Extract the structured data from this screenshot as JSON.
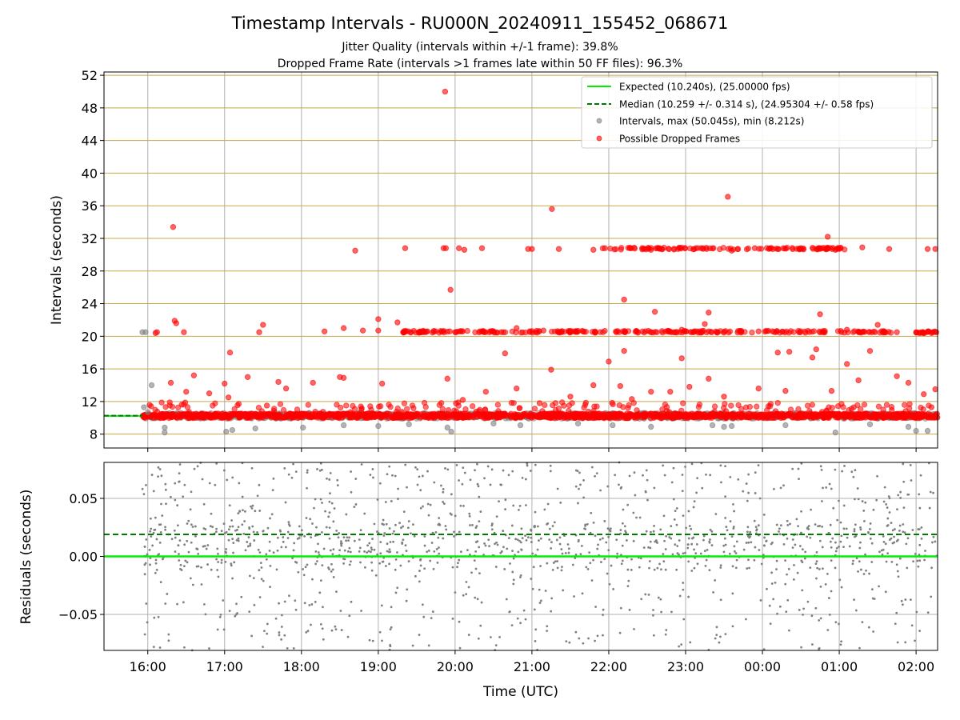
{
  "chart_data": {
    "type": "scatter",
    "title": "Timestamp Intervals - RU000N_20240911_155452_068671",
    "subtitles": [
      "Jitter Quality (intervals within +/-1 frame): 39.8%",
      "Dropped Frame Rate (intervals >1 frames late within 50 FF files): 96.3%"
    ],
    "x_tick_labels": [
      "16:00",
      "17:00",
      "18:00",
      "19:00",
      "20:00",
      "21:00",
      "22:00",
      "23:00",
      "00:00",
      "01:00",
      "02:00"
    ],
    "x_range_hours": [
      15.43,
      26.28
    ],
    "xlabel": "Time (UTC)",
    "grid": true,
    "panels": [
      {
        "name": "intervals",
        "ylabel": "Intervals (seconds)",
        "ylim": [
          6.3,
          52.4
        ],
        "yticks": [
          8,
          12,
          16,
          20,
          24,
          28,
          32,
          36,
          40,
          44,
          48,
          52
        ],
        "hlines_color": "#c8a848",
        "legend_position": "top-right",
        "legend": [
          {
            "label": "Expected (10.240s), (25.00000 fps)",
            "style": "solid-line",
            "color": "#00ee00"
          },
          {
            "label": "Median (10.259 +/- 0.314 s), (24.95304 +/- 0.58 fps)",
            "style": "dashed-line",
            "color": "#007a00"
          },
          {
            "label": "Intervals, max (50.045s), min (8.212s)",
            "style": "marker",
            "color": "#808080"
          },
          {
            "label": "Possible Dropped Frames",
            "style": "marker",
            "color": "#ff0000"
          }
        ],
        "expected_value": 10.24,
        "median_value": 10.259,
        "baseline_range": [
          15.43,
          15.93
        ],
        "series": [
          {
            "name": "Intervals",
            "color": "#808080",
            "points": [
              [
                15.93,
                20.5
              ],
              [
                15.97,
                20.5
              ],
              [
                16.05,
                14
              ],
              [
                15.95,
                11.3
              ],
              [
                16.0,
                10.7
              ],
              [
                16.22,
                8.2
              ],
              [
                16.22,
                8.8
              ],
              [
                17.02,
                8.3
              ],
              [
                17.1,
                8.5
              ],
              [
                17.4,
                8.7
              ],
              [
                18.02,
                8.8
              ],
              [
                18.55,
                9.1
              ],
              [
                19.0,
                9.0
              ],
              [
                19.4,
                9.2
              ],
              [
                19.95,
                8.3
              ],
              [
                19.9,
                8.8
              ],
              [
                20.5,
                9.3
              ],
              [
                20.85,
                9.1
              ],
              [
                21.6,
                9.3
              ],
              [
                22.05,
                9.1
              ],
              [
                22.55,
                8.9
              ],
              [
                23.35,
                9.1
              ],
              [
                23.5,
                8.9
              ],
              [
                23.6,
                9.0
              ],
              [
                24.3,
                9.1
              ],
              [
                24.95,
                8.2
              ],
              [
                25.9,
                8.9
              ],
              [
                26.0,
                8.4
              ],
              [
                26.15,
                8.4
              ],
              [
                25.4,
                9.2
              ]
            ]
          },
          {
            "name": "Possible Dropped Frames",
            "color": "#ff0000",
            "points": [
              [
                16.33,
                33.4
              ],
              [
                16.35,
                21.9
              ],
              [
                16.37,
                21.6
              ],
              [
                16.47,
                20.5
              ],
              [
                16.12,
                20.5
              ],
              [
                16.1,
                20.4
              ],
              [
                17.07,
                18.0
              ],
              [
                17.45,
                20.5
              ],
              [
                17.5,
                21.4
              ],
              [
                18.7,
                30.5
              ],
              [
                18.3,
                20.6
              ],
              [
                18.55,
                21.0
              ],
              [
                18.8,
                20.7
              ],
              [
                19.0,
                22.1
              ],
              [
                19.0,
                20.7
              ],
              [
                19.25,
                21.7
              ],
              [
                19.35,
                30.8
              ],
              [
                19.85,
                30.8
              ],
              [
                19.88,
                30.8
              ],
              [
                19.87,
                50.0
              ],
              [
                19.94,
                25.7
              ],
              [
                19.93,
                20.6
              ],
              [
                20.05,
                30.8
              ],
              [
                20.12,
                30.6
              ],
              [
                20.35,
                30.8
              ],
              [
                20.6,
                20.5
              ],
              [
                20.65,
                17.9
              ],
              [
                20.8,
                21.0
              ],
              [
                20.95,
                30.7
              ],
              [
                21.0,
                30.7
              ],
              [
                21.26,
                35.6
              ],
              [
                21.15,
                20.7
              ],
              [
                21.35,
                30.7
              ],
              [
                21.8,
                30.6
              ],
              [
                21.95,
                30.8
              ],
              [
                22.1,
                20.5
              ],
              [
                22.2,
                24.5
              ],
              [
                22.55,
                30.6
              ],
              [
                22.6,
                23.0
              ],
              [
                22.9,
                30.7
              ],
              [
                22.95,
                20.8
              ],
              [
                23.2,
                30.8
              ],
              [
                23.25,
                21.5
              ],
              [
                23.3,
                22.9
              ],
              [
                23.55,
                37.1
              ],
              [
                23.6,
                30.5
              ],
              [
                23.9,
                30.8
              ],
              [
                23.95,
                20.6
              ],
              [
                24.2,
                30.7
              ],
              [
                24.35,
                18.1
              ],
              [
                24.5,
                30.8
              ],
              [
                24.65,
                17.4
              ],
              [
                24.7,
                30.7
              ],
              [
                24.75,
                22.7
              ],
              [
                24.85,
                32.2
              ],
              [
                24.95,
                30.6
              ],
              [
                25.0,
                30.7
              ],
              [
                25.1,
                20.8
              ],
              [
                25.3,
                30.9
              ],
              [
                25.5,
                21.4
              ],
              [
                25.65,
                30.7
              ],
              [
                25.75,
                20.5
              ],
              [
                26.05,
                20.4
              ],
              [
                26.15,
                30.7
              ],
              [
                26.25,
                30.7
              ],
              [
                26.22,
                20.5
              ],
              [
                16.3,
                14.3
              ],
              [
                16.5,
                13.2
              ],
              [
                16.6,
                15.2
              ],
              [
                16.8,
                13.0
              ],
              [
                17.0,
                14.2
              ],
              [
                17.05,
                12.5
              ],
              [
                17.3,
                15.0
              ],
              [
                17.55,
                11.5
              ],
              [
                17.7,
                14.4
              ],
              [
                17.8,
                13.6
              ],
              [
                18.15,
                14.3
              ],
              [
                18.5,
                15.0
              ],
              [
                18.55,
                14.9
              ],
              [
                19.05,
                14.2
              ],
              [
                19.9,
                14.8
              ],
              [
                20.1,
                12.2
              ],
              [
                20.4,
                13.2
              ],
              [
                20.8,
                13.6
              ],
              [
                21.1,
                11.8
              ],
              [
                21.25,
                15.9
              ],
              [
                21.5,
                12.6
              ],
              [
                21.8,
                14.0
              ],
              [
                22.0,
                16.9
              ],
              [
                22.15,
                13.9
              ],
              [
                22.2,
                18.2
              ],
              [
                22.3,
                12.3
              ],
              [
                22.55,
                13.2
              ],
              [
                22.8,
                13.2
              ],
              [
                22.95,
                17.3
              ],
              [
                23.05,
                13.8
              ],
              [
                23.3,
                14.8
              ],
              [
                23.5,
                12.6
              ],
              [
                23.95,
                13.6
              ],
              [
                24.2,
                18.0
              ],
              [
                24.3,
                13.3
              ],
              [
                24.7,
                18.4
              ],
              [
                24.9,
                13.3
              ],
              [
                25.1,
                16.6
              ],
              [
                25.25,
                14.6
              ],
              [
                25.4,
                18.2
              ],
              [
                25.75,
                15.1
              ],
              [
                25.9,
                14.3
              ],
              [
                26.1,
                12.9
              ],
              [
                26.25,
                13.5
              ],
              [
                26.2,
                11.3
              ]
            ]
          }
        ],
        "dense_band": {
          "center": 10.25,
          "spread": 0.35,
          "range": [
            15.93,
            26.28
          ],
          "note": "continuous band of red markers near 10.24 s"
        }
      },
      {
        "name": "residuals",
        "ylabel": "Residuals (seconds)",
        "ylim": [
          -0.081,
          0.081
        ],
        "yticks": [
          -0.05,
          0.0,
          0.05
        ],
        "ytick_labels": [
          "−0.05",
          "0.00",
          "0.05"
        ],
        "expected_line": 0.0,
        "median_line": 0.019,
        "series": [
          {
            "name": "Residuals",
            "color": "#808080",
            "marker_size": "small",
            "distribution": "uniform cloud between -0.081 and 0.081, denser above 0",
            "x_range": [
              15.93,
              26.28
            ]
          }
        ]
      }
    ]
  }
}
